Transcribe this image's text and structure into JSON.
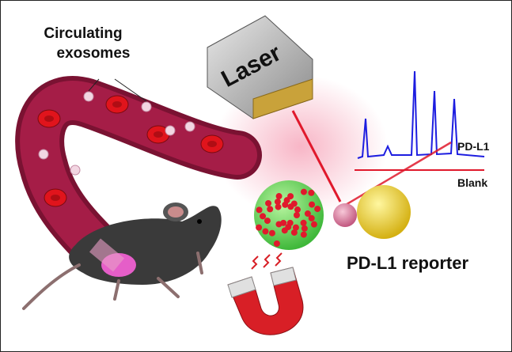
{
  "exosome_label": {
    "line1": "Circulating",
    "line2": "exosomes"
  },
  "laser_label": "Laser",
  "spectrum": {
    "signal_label": "PD-L1",
    "blank_label": "Blank"
  },
  "reporter_label": "PD-L1 reporter"
}
